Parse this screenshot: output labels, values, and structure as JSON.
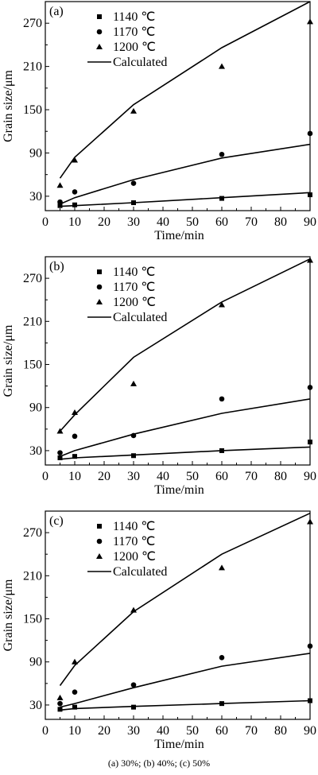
{
  "caption": "(a) 30%; (b) 40%; (c) 50%",
  "chart_data": [
    {
      "type": "scatter",
      "panel_label": "(a)",
      "xlabel": "Time/min",
      "ylabel": "Grain size/μm",
      "xlim": [
        0,
        90
      ],
      "ylim": [
        10,
        300
      ],
      "xticks": [
        0,
        10,
        20,
        30,
        40,
        50,
        60,
        70,
        80,
        90
      ],
      "yticks": [
        30,
        90,
        150,
        210,
        270
      ],
      "legend_position": "top-left",
      "series": [
        {
          "name": "1140 ℃",
          "marker": "square",
          "x": [
            5,
            10,
            30,
            60,
            90
          ],
          "y": [
            17,
            18,
            21,
            27,
            32
          ]
        },
        {
          "name": "1170 ℃",
          "marker": "circle",
          "x": [
            5,
            10,
            30,
            60,
            90
          ],
          "y": [
            22,
            36,
            48,
            88,
            117
          ]
        },
        {
          "name": "1200 ℃",
          "marker": "triangle",
          "x": [
            5,
            10,
            30,
            60,
            90
          ],
          "y": [
            45,
            80,
            148,
            210,
            272
          ]
        },
        {
          "name": "Calculated",
          "marker": "line",
          "x": [
            5,
            10,
            30,
            60,
            90
          ],
          "y": [
            16,
            17,
            21,
            28,
            35
          ]
        },
        {
          "name": "",
          "marker": "line",
          "x": [
            5,
            10,
            30,
            60,
            90
          ],
          "y": [
            19,
            28,
            53,
            83,
            102
          ]
        },
        {
          "name": "",
          "marker": "line",
          "x": [
            5,
            10,
            30,
            60,
            90
          ],
          "y": [
            55,
            84,
            157,
            236,
            300
          ]
        }
      ]
    },
    {
      "type": "scatter",
      "panel_label": "(b)",
      "xlabel": "Time/min",
      "ylabel": "Grain size/μm",
      "xlim": [
        0,
        90
      ],
      "ylim": [
        10,
        300
      ],
      "xticks": [
        0,
        10,
        20,
        30,
        40,
        50,
        60,
        70,
        80,
        90
      ],
      "yticks": [
        30,
        90,
        150,
        210,
        270
      ],
      "legend_position": "top-left",
      "series": [
        {
          "name": "1140 ℃",
          "marker": "square",
          "x": [
            5,
            10,
            30,
            60,
            90
          ],
          "y": [
            20,
            22,
            23,
            30,
            42
          ]
        },
        {
          "name": "1170 ℃",
          "marker": "circle",
          "x": [
            5,
            10,
            30,
            60,
            90
          ],
          "y": [
            27,
            50,
            51,
            102,
            118
          ]
        },
        {
          "name": "1200 ℃",
          "marker": "triangle",
          "x": [
            5,
            10,
            30,
            60,
            90
          ],
          "y": [
            57,
            83,
            123,
            233,
            295
          ]
        },
        {
          "name": "Calculated",
          "marker": "line",
          "x": [
            5,
            10,
            30,
            60,
            90
          ],
          "y": [
            18,
            20,
            24,
            30,
            35
          ]
        },
        {
          "name": "",
          "marker": "line",
          "x": [
            5,
            10,
            30,
            60,
            90
          ],
          "y": [
            22,
            30,
            53,
            82,
            102
          ]
        },
        {
          "name": "",
          "marker": "line",
          "x": [
            5,
            10,
            30,
            60,
            90
          ],
          "y": [
            57,
            80,
            160,
            237,
            297
          ]
        }
      ]
    },
    {
      "type": "scatter",
      "panel_label": "(c)",
      "xlabel": "Time/min",
      "ylabel": "Grain size/μm",
      "xlim": [
        0,
        90
      ],
      "ylim": [
        10,
        300
      ],
      "xticks": [
        0,
        10,
        20,
        30,
        40,
        50,
        60,
        70,
        80,
        90
      ],
      "yticks": [
        30,
        90,
        150,
        210,
        270
      ],
      "legend_position": "top-left",
      "series": [
        {
          "name": "1140 ℃",
          "marker": "square",
          "x": [
            5,
            10,
            30,
            60,
            90
          ],
          "y": [
            24,
            27,
            27,
            32,
            36
          ]
        },
        {
          "name": "1170 ℃",
          "marker": "circle",
          "x": [
            5,
            10,
            30,
            60,
            90
          ],
          "y": [
            32,
            48,
            58,
            96,
            112
          ]
        },
        {
          "name": "1200 ℃",
          "marker": "triangle",
          "x": [
            5,
            10,
            30,
            60,
            90
          ],
          "y": [
            40,
            90,
            162,
            221,
            285
          ]
        },
        {
          "name": "Calculated",
          "marker": "line",
          "x": [
            5,
            10,
            30,
            60,
            90
          ],
          "y": [
            23,
            25,
            28,
            32,
            36
          ]
        },
        {
          "name": "",
          "marker": "line",
          "x": [
            5,
            10,
            30,
            60,
            90
          ],
          "y": [
            27,
            32,
            54,
            84,
            102
          ]
        },
        {
          "name": "",
          "marker": "line",
          "x": [
            5,
            10,
            30,
            60,
            90
          ],
          "y": [
            57,
            85,
            160,
            240,
            297
          ]
        }
      ]
    }
  ]
}
